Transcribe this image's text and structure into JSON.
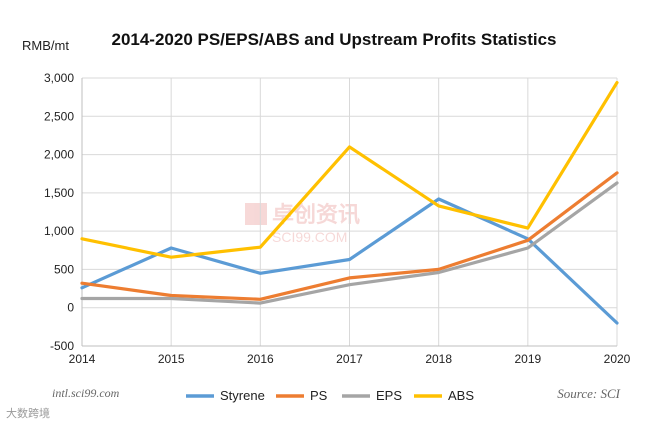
{
  "chart_data": {
    "type": "line",
    "title": "2014-2020 PS/EPS/ABS and Upstream Profits Statistics",
    "ylabel": "RMB/mt",
    "xlabel": "",
    "categories": [
      "2014",
      "2015",
      "2016",
      "2017",
      "2018",
      "2019",
      "2020"
    ],
    "ylim": [
      -500,
      3000
    ],
    "yticks": [
      -500,
      0,
      500,
      1000,
      1500,
      2000,
      2500,
      3000
    ],
    "ytick_labels": [
      "-500",
      "0",
      "500",
      "1,000",
      "1,500",
      "2,000",
      "2,500",
      "3,000"
    ],
    "grid": true,
    "legend_position": "bottom",
    "series": [
      {
        "name": "Styrene",
        "color": "#5B9BD5",
        "values": [
          260,
          780,
          450,
          630,
          1420,
          900,
          -200
        ]
      },
      {
        "name": "PS",
        "color": "#ED7D31",
        "values": [
          320,
          160,
          110,
          390,
          500,
          880,
          1760
        ]
      },
      {
        "name": "EPS",
        "color": "#A5A5A5",
        "values": [
          120,
          120,
          60,
          300,
          460,
          780,
          1630
        ]
      },
      {
        "name": "ABS",
        "color": "#FFC000",
        "values": [
          900,
          660,
          790,
          2100,
          1330,
          1040,
          2940
        ]
      }
    ]
  },
  "credits": {
    "site": "intl.sci99.com",
    "source": "Source: SCI",
    "watermark_cn": "卓创资讯",
    "watermark_en": "SCI99.COM",
    "corner": "大数跨境"
  }
}
